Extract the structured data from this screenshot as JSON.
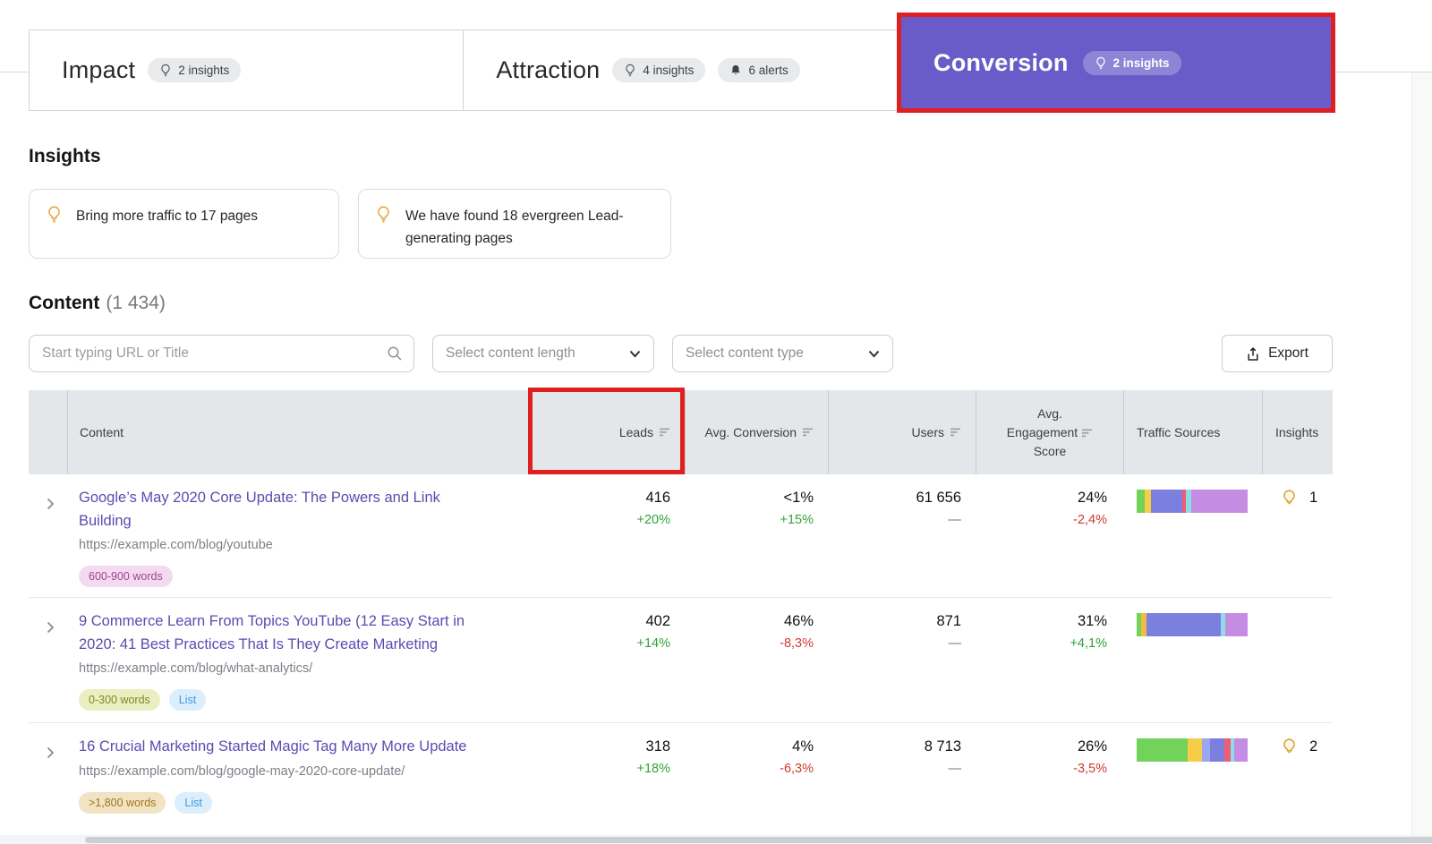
{
  "colors": {
    "accent_purple": "#6a5cc8",
    "annotation_red": "#e02020",
    "positive_green": "#31a33a",
    "negative_red": "#cf3a30",
    "link_purple": "#574db1",
    "table_header_bg": "#e4e7e9"
  },
  "tabs": {
    "impact": {
      "label": "Impact",
      "insights_badge": "2 insights"
    },
    "attraction": {
      "label": "Attraction",
      "insights_badge": "4 insights",
      "alerts_badge": "6 alerts"
    },
    "conversion": {
      "label": "Conversion",
      "insights_badge": "2 insights"
    }
  },
  "insights_section": {
    "heading": "Insights",
    "cards": [
      {
        "text": "Bring more traffic to 17 pages"
      },
      {
        "text": "We have found 18 evergreen Lead-generating pages"
      }
    ]
  },
  "content_section": {
    "heading": "Content",
    "count": "(1 434)",
    "search_placeholder": "Start typing URL or Title",
    "content_length_placeholder": "Select content length",
    "content_type_placeholder": "Select content type",
    "export_label": "Export"
  },
  "table": {
    "header": {
      "content": "Content",
      "leads": "Leads",
      "avg_conversion": "Avg. Conversion",
      "users": "Users",
      "engagement_line1": "Avg.",
      "engagement_line2": "Engagement",
      "engagement_line3": "Score",
      "traffic_sources": "Traffic Sources",
      "insights": "Insights"
    },
    "rows": [
      {
        "title": "Google’s May 2020 Core Update: The Powers and Link Building",
        "url": "https://example.com/blog/youtube",
        "badges": [
          {
            "label": "600-900 words",
            "style": "pink"
          }
        ],
        "leads": "416",
        "leads_change": "+20%",
        "avg_conversion": "<1%",
        "avg_conversion_change": "+15%",
        "users": "61 656",
        "users_change": "—",
        "engagement": "24%",
        "engagement_change": "-2,4%",
        "insights_count": "1",
        "traffic": [
          {
            "color": "#72d35b",
            "pct": 7
          },
          {
            "color": "#f6cd46",
            "pct": 6
          },
          {
            "color": "#7b80de",
            "pct": 28
          },
          {
            "color": "#ed5e74",
            "pct": 3
          },
          {
            "color": "#8edce6",
            "pct": 5
          },
          {
            "color": "#c48ce2",
            "pct": 51
          }
        ]
      },
      {
        "title": "9 Commerce Learn From Topics YouTube (12 Easy Start in 2020: 41 Best Practices That Is They Create Marketing",
        "url": "https://example.com/blog/what-analytics/",
        "badges": [
          {
            "label": "0-300 words",
            "style": "green"
          },
          {
            "label": "List",
            "style": "blue"
          }
        ],
        "leads": "402",
        "leads_change": "+14%",
        "avg_conversion": "46%",
        "avg_conversion_change": "-8,3%",
        "users": "871",
        "users_change": "—",
        "engagement": "31%",
        "engagement_change": "+4,1%",
        "insights_count": "",
        "traffic": [
          {
            "color": "#72d35b",
            "pct": 4
          },
          {
            "color": "#f3bc40",
            "pct": 5
          },
          {
            "color": "#7b80de",
            "pct": 67
          },
          {
            "color": "#8edce6",
            "pct": 4
          },
          {
            "color": "#c48ce2",
            "pct": 20
          }
        ]
      },
      {
        "title": "16 Crucial Marketing Started Magic Tag Many More Update",
        "url": "https://example.com/blog/google-may-2020-core-update/",
        "badges": [
          {
            "label": ">1,800 words",
            "style": "tan"
          },
          {
            "label": "List",
            "style": "blue"
          }
        ],
        "leads": "318",
        "leads_change": "+18%",
        "avg_conversion": "4%",
        "avg_conversion_change": "-6,3%",
        "users": "8 713",
        "users_change": "—",
        "engagement": "26%",
        "engagement_change": "-3,5%",
        "insights_count": "2",
        "traffic": [
          {
            "color": "#72d35b",
            "pct": 46
          },
          {
            "color": "#f6cd46",
            "pct": 13
          },
          {
            "color": "#9aa6ef",
            "pct": 7
          },
          {
            "color": "#7b80de",
            "pct": 13
          },
          {
            "color": "#ed5e74",
            "pct": 6
          },
          {
            "color": "#8edce6",
            "pct": 3
          },
          {
            "color": "#c48ce2",
            "pct": 12
          }
        ]
      }
    ]
  }
}
